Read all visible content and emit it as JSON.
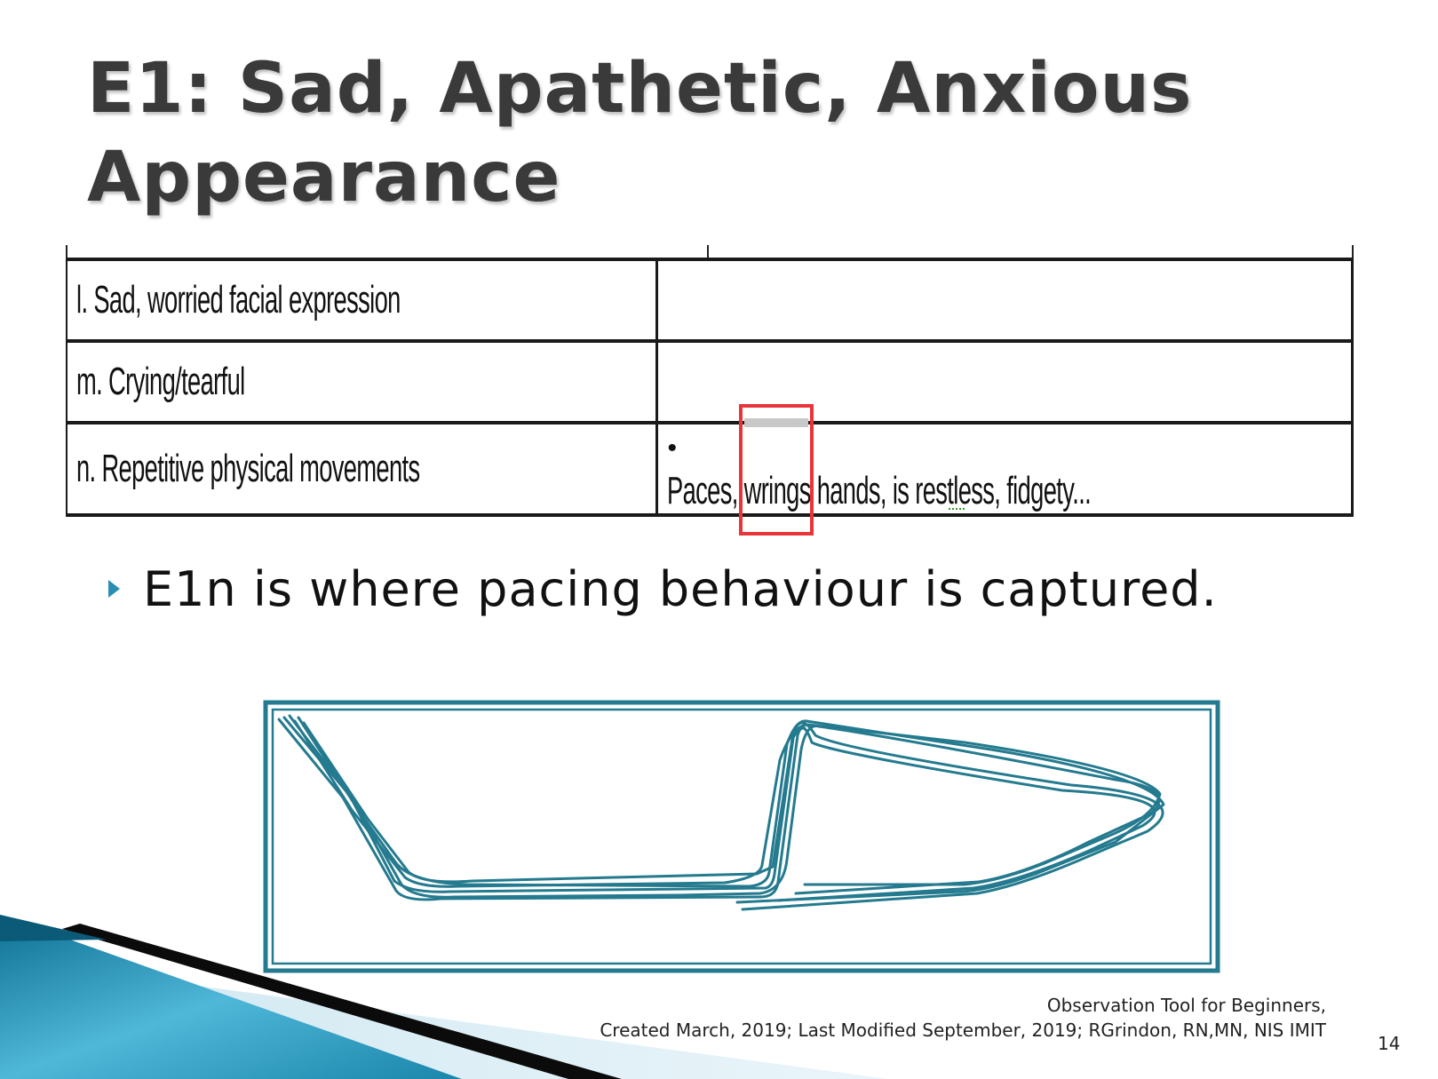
{
  "slide": {
    "title_line1": "E1:  Sad, Apathetic, Anxious",
    "title_line2": "Appearance",
    "table": {
      "rows": [
        {
          "item": "l. Sad, worried facial expression",
          "detail": ""
        },
        {
          "item": "m. Crying/tearful",
          "detail": ""
        },
        {
          "item": "n. Repetitive physical movements",
          "bullet": "•",
          "detail": "Paces, wrings hands, is restless, fidgety..."
        }
      ]
    },
    "bullet": "E1n is where pacing behaviour is captured.",
    "footer_line1": "Observation Tool for Beginners,",
    "footer_line2": "Created March, 2019; Last  Modified September, 2019;  RGrindon, RN,MN, NIS IMIT",
    "page_number": "14",
    "colors": {
      "title": "#3a3a3a",
      "bullet_arrow": "#2a8db4",
      "highlight_box": "#e8353a",
      "pacing_line": "#247a8e"
    },
    "icons": {
      "bullet": "triangle-right-icon"
    }
  }
}
